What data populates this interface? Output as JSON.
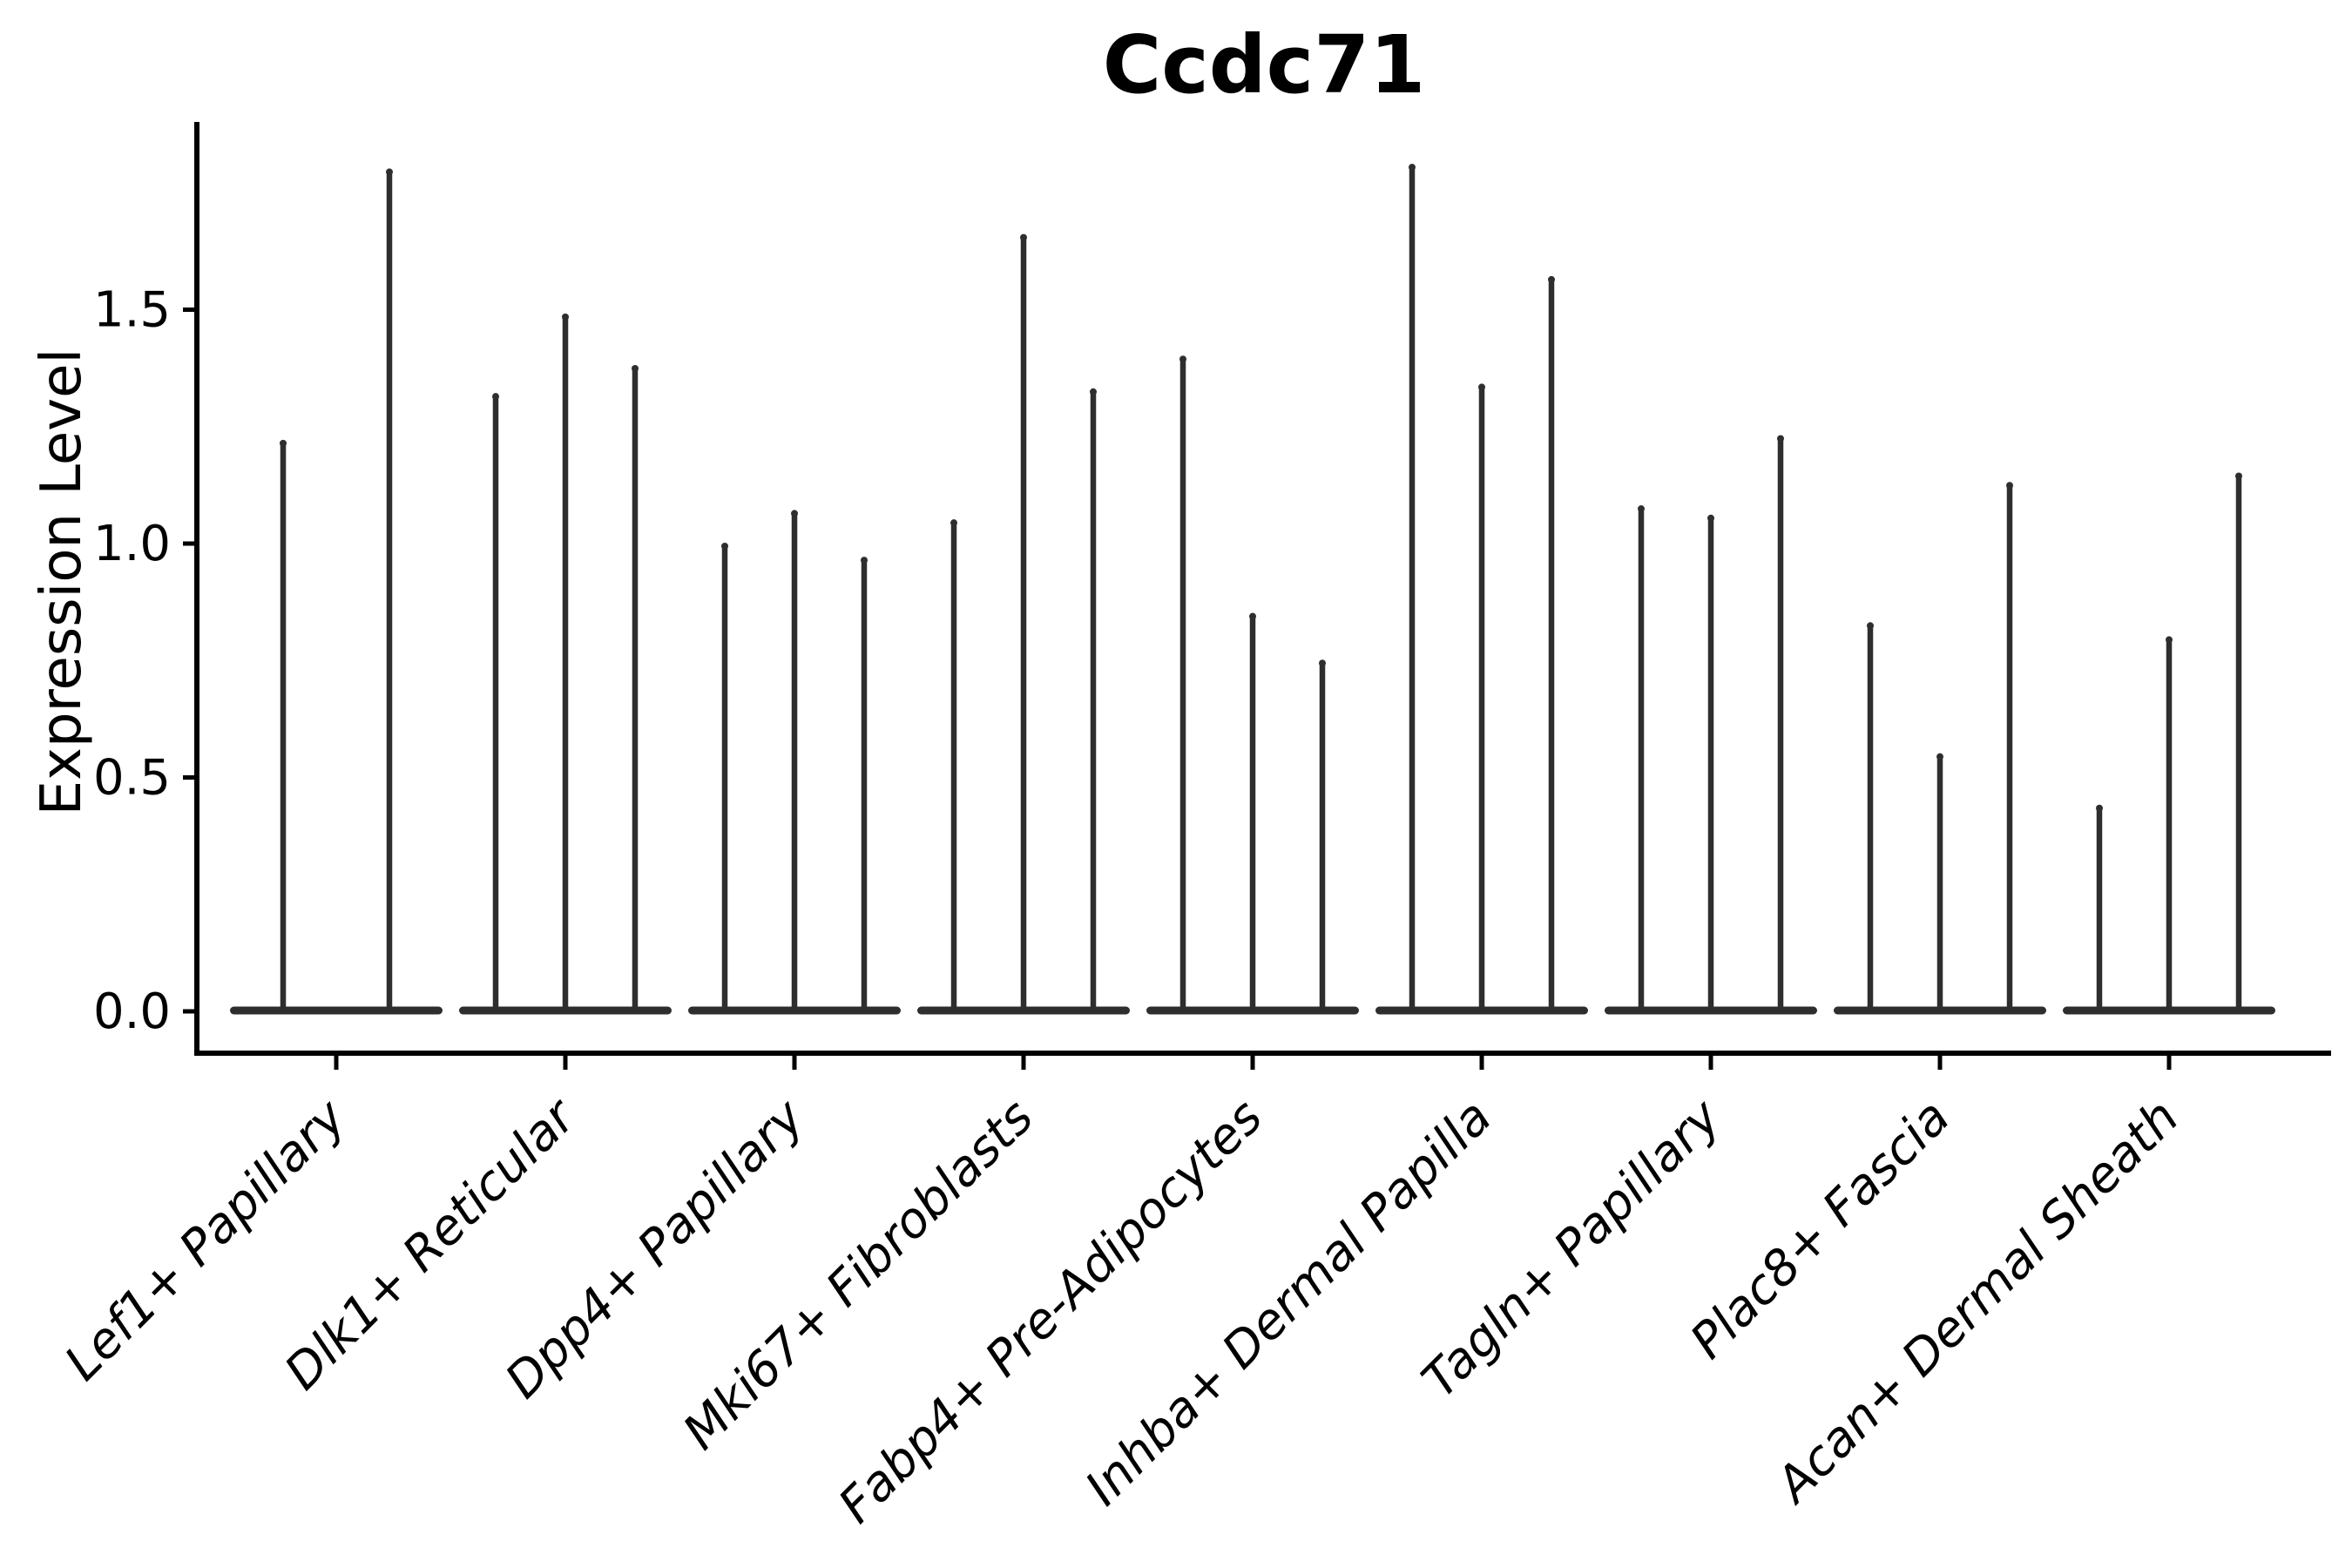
{
  "style": {
    "ink": "#000000",
    "violin_color": "#2e2e2e",
    "background": "#ffffff"
  },
  "chart_data": {
    "type": "violin",
    "title": "Ccdc71",
    "xlabel": "",
    "ylabel": "Expression Level",
    "ylim": [
      -0.09,
      1.9
    ],
    "grid": false,
    "legend": "none",
    "yticks": [
      {
        "value": 0.0,
        "label": "0.0"
      },
      {
        "value": 0.5,
        "label": "0.5"
      },
      {
        "value": 1.0,
        "label": "1.0"
      },
      {
        "value": 1.5,
        "label": "1.5"
      }
    ],
    "categories": [
      "Lef1+ Papillary",
      "Dlk1+ Reticular",
      "Dpp4+ Papillary",
      "Mki67+ Fibroblasts",
      "Fabp4+ Pre-Adipocytes",
      "Inhba+ Dermal Papilla",
      "Tagln+ Papillary",
      "Plac8+ Fascia",
      "Acan+ Dermal Sheath"
    ],
    "violins": [
      {
        "category": "Lef1+ Papillary",
        "spike_maxima": [
          1.22,
          1.8
        ]
      },
      {
        "category": "Dlk1+ Reticular",
        "spike_maxima": [
          1.32,
          1.49,
          1.38
        ]
      },
      {
        "category": "Dpp4+ Papillary",
        "spike_maxima": [
          1.0,
          1.07,
          0.97
        ]
      },
      {
        "category": "Mki67+ Fibroblasts",
        "spike_maxima": [
          1.05,
          1.66,
          1.33
        ]
      },
      {
        "category": "Fabp4+ Pre-Adipocytes",
        "spike_maxima": [
          1.4,
          0.85,
          0.75
        ]
      },
      {
        "category": "Inhba+ Dermal Papilla",
        "spike_maxima": [
          1.81,
          1.34,
          1.57
        ]
      },
      {
        "category": "Tagln+ Papillary",
        "spike_maxima": [
          1.08,
          1.06,
          1.23
        ]
      },
      {
        "category": "Plac8+ Fascia",
        "spike_maxima": [
          0.83,
          0.55,
          1.13
        ]
      },
      {
        "category": "Acan+ Dermal Sheath",
        "spike_maxima": [
          0.44,
          0.8,
          1.15
        ]
      }
    ],
    "shape_note": "Each violin is a spike: wide flat base at expression 0 with a thin vertical spike up to the maximum expression value."
  }
}
